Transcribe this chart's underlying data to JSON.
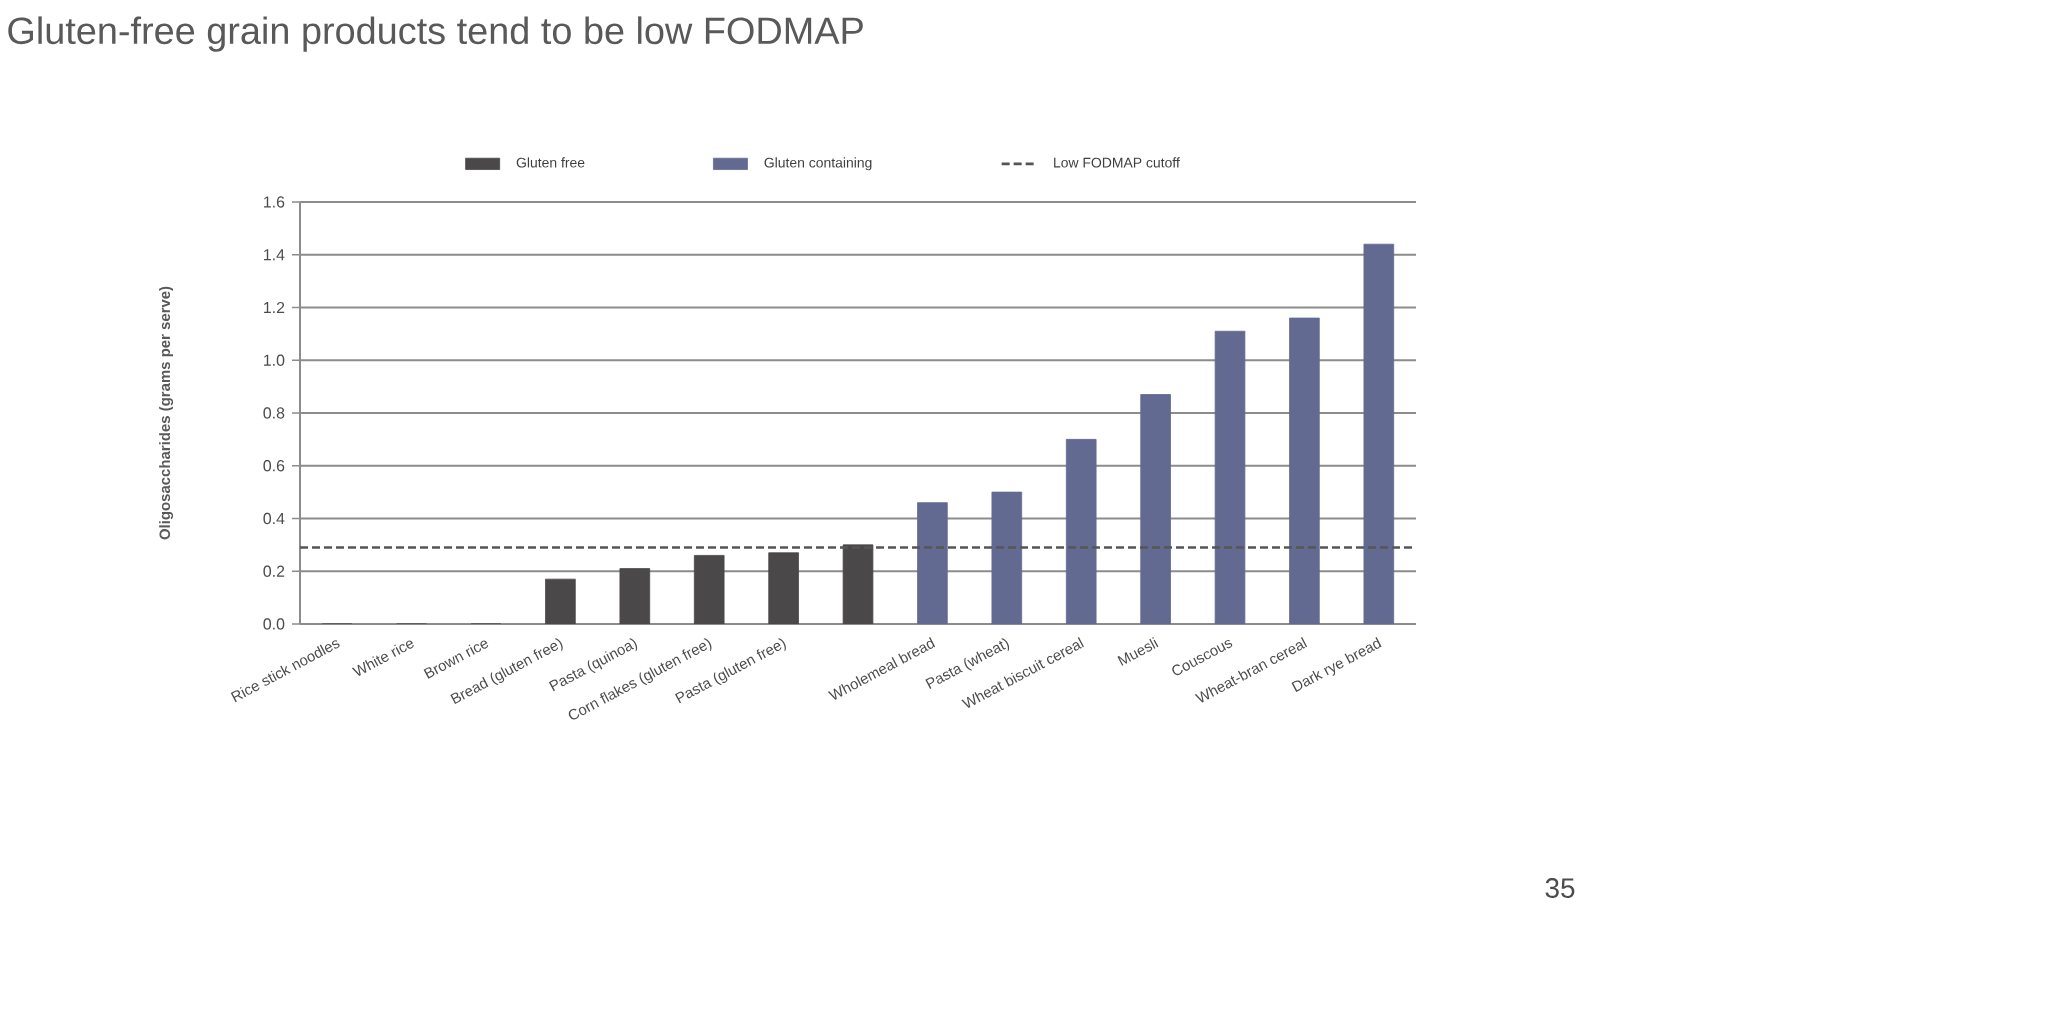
{
  "chart_data": {
    "type": "bar",
    "title": "Gluten-free grain products tend to be low FODMAP",
    "ylabel": "Oligosaccharides (grams per serve)",
    "categories": [
      "Rice stick noodles",
      "White rice",
      "Brown rice",
      "Bread (gluten free)",
      "Pasta (quinoa)",
      "Corn flakes (gluten free)",
      "Pasta (gluten free)",
      null,
      "Wholemeal bread",
      "Pasta (wheat)",
      "Wheat biscuit cereal",
      "Muesli",
      "Couscous",
      "Wheat-bran cereal",
      "Dark rye bread"
    ],
    "series": [
      {
        "name": "Gluten free",
        "color": "#4a4849",
        "values": [
          0,
          0,
          0,
          0.17,
          0.21,
          0.26,
          0.27,
          0.3,
          null,
          null,
          null,
          null,
          null,
          null,
          null
        ]
      },
      {
        "name": "Gluten containing",
        "color": "#636a91",
        "values": [
          null,
          null,
          null,
          null,
          null,
          null,
          null,
          null,
          0.46,
          0.5,
          0.7,
          0.87,
          1.11,
          1.16,
          1.44
        ]
      }
    ],
    "ylim": [
      0,
      1.6
    ],
    "yticks": [
      {
        "value": 0,
        "label": "0.0"
      },
      0.2,
      0.4,
      0.6,
      0.8,
      {
        "value": 1,
        "label": "1.0"
      },
      1.2,
      1.4,
      1.6
    ],
    "grid": "y",
    "legend": "top",
    "ref_lines": [
      {
        "axis": "y",
        "value": 0.29,
        "label": "Low FODMAP cutoff",
        "color": "#555555",
        "line_style": "dashed"
      }
    ],
    "annotations": [
      "35"
    ]
  }
}
